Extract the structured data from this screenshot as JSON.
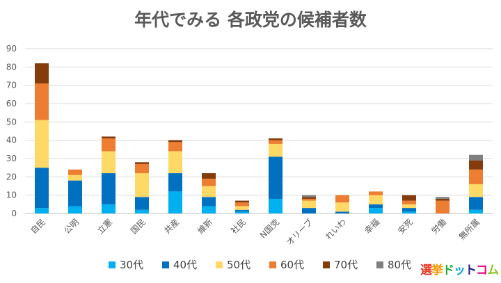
{
  "chart_data": {
    "type": "bar",
    "stacked": true,
    "title": "年代でみる 各政党の候補者数",
    "xlabel": "",
    "ylabel": "",
    "ylim": [
      0,
      90
    ],
    "yticks": [
      0,
      10,
      20,
      30,
      40,
      50,
      60,
      70,
      80,
      90
    ],
    "grid": true,
    "legend_position": "bottom",
    "categories": [
      "自民",
      "公明",
      "立憲",
      "国民",
      "共産",
      "維新",
      "社民",
      "N国党",
      "オリーブ",
      "れいわ",
      "幸福",
      "安死",
      "労働",
      "無所属"
    ],
    "series": [
      {
        "name": "30代",
        "color": "#00b0f0",
        "values": [
          3,
          4,
          5,
          2,
          12,
          4,
          1,
          8,
          0,
          0,
          3,
          1,
          0,
          2
        ]
      },
      {
        "name": "40代",
        "color": "#0070c0",
        "values": [
          22,
          14,
          17,
          7,
          10,
          5,
          1,
          23,
          3,
          1,
          2,
          2,
          0,
          7
        ]
      },
      {
        "name": "50代",
        "color": "#ffd966",
        "values": [
          26,
          3,
          12,
          13,
          12,
          6,
          2,
          7,
          4,
          5,
          5,
          2,
          0,
          7
        ]
      },
      {
        "name": "60代",
        "color": "#ed7d31",
        "values": [
          20,
          3,
          7,
          5,
          5,
          4,
          2,
          2,
          1,
          4,
          2,
          2,
          7,
          8
        ]
      },
      {
        "name": "70代",
        "color": "#843c0c",
        "values": [
          11,
          0,
          1,
          1,
          1,
          3,
          1,
          1,
          1,
          0,
          0,
          3,
          1,
          5
        ]
      },
      {
        "name": "80代",
        "color": "#7f7f7f",
        "values": [
          0,
          0,
          0,
          0,
          0,
          0,
          0,
          0,
          1,
          0,
          0,
          0,
          1,
          3
        ]
      }
    ]
  },
  "logo": {
    "text": "選挙ドットコム",
    "colors": [
      "#e83828",
      "#f39800",
      "#22ac38",
      "#00a0e9",
      "#1d2088",
      "#e4007f",
      "#8fc31f"
    ]
  }
}
